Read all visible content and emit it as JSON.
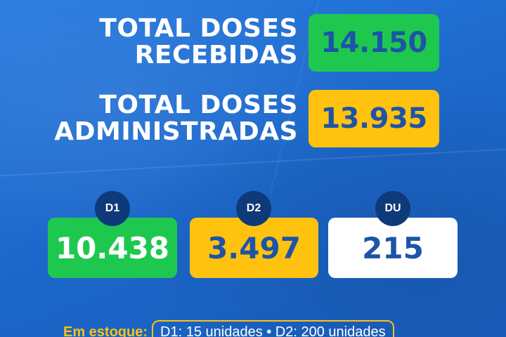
{
  "totals": {
    "recebidas": {
      "label_line1": "TOTAL DOSES",
      "label_line2": "RECEBIDAS",
      "value": "14.150",
      "color": "#1ec84f"
    },
    "administradas": {
      "label_line1": "TOTAL DOSES",
      "label_line2": "ADMINISTRADAS",
      "value": "13.935",
      "color": "#ffc20f"
    }
  },
  "doses": [
    {
      "badge": "D1",
      "value": "10.438",
      "color": "#1ec84f"
    },
    {
      "badge": "D2",
      "value": "3.497",
      "color": "#ffc20f"
    },
    {
      "badge": "DU",
      "value": "215",
      "color": "#ffffff"
    }
  ],
  "stock": {
    "label": "Em estoque:",
    "detail": "D1: 15 unidades • D2: 200 unidades"
  },
  "colors": {
    "background": "#1f6fd1",
    "badge": "#0e3a7a",
    "value_text": "#1d54a8"
  }
}
